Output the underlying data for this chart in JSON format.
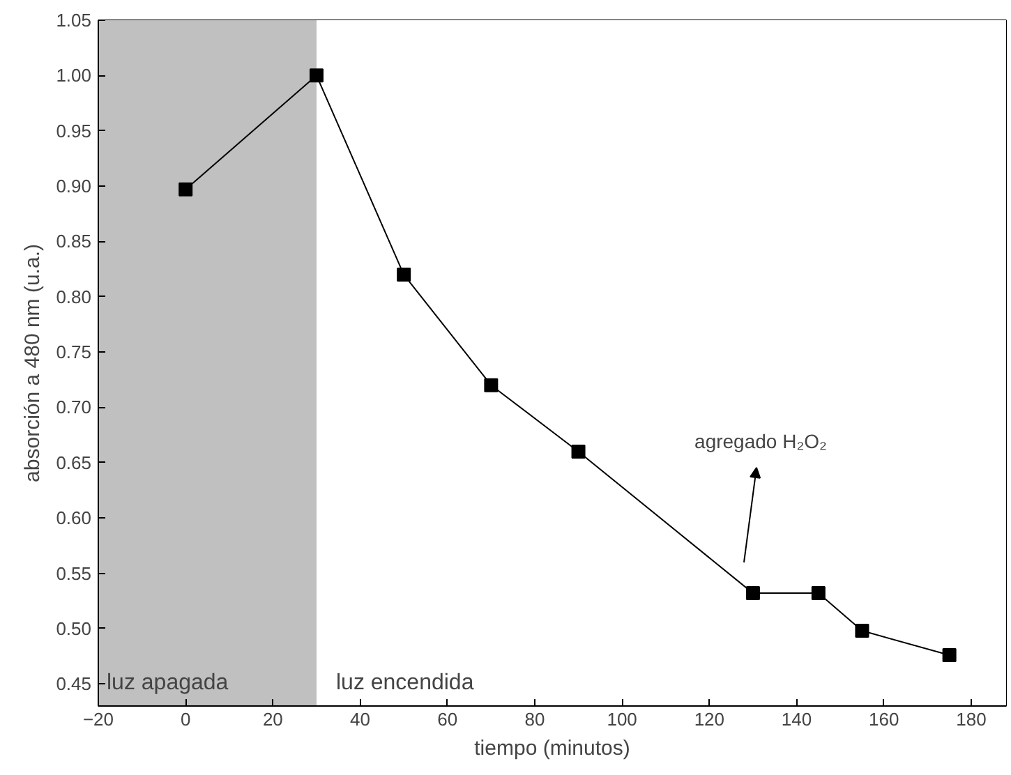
{
  "chart_data": {
    "type": "line",
    "xlabel": "tiempo (minutos)",
    "ylabel": "absorción a 480 nm (u.a.)",
    "x": [
      0,
      30,
      50,
      70,
      90,
      130,
      145,
      155,
      175
    ],
    "series": [
      {
        "color": "#000000",
        "values": [
          0.897,
          1.0,
          0.82,
          0.72,
          0.66,
          0.532,
          0.532,
          0.498,
          0.476
        ]
      }
    ],
    "xlim": [
      -20,
      188
    ],
    "xticks": [
      -20,
      0,
      20,
      40,
      60,
      80,
      100,
      120,
      140,
      160,
      180
    ],
    "ylim": [
      0.43,
      1.05
    ],
    "yticks": [
      {
        "value": 0.45,
        "label": "0.45"
      },
      {
        "value": 0.5,
        "label": "0.50"
      },
      {
        "value": 0.55,
        "label": "0.55"
      },
      {
        "value": 0.6,
        "label": "0.60"
      },
      {
        "value": 0.65,
        "label": "0.65"
      },
      {
        "value": 0.7,
        "label": "0.70"
      },
      {
        "value": 0.75,
        "label": "0.75"
      },
      {
        "value": 0.8,
        "label": "0.80"
      },
      {
        "value": 0.85,
        "label": "0.85"
      },
      {
        "value": 0.9,
        "label": "0.90"
      },
      {
        "value": 0.95,
        "label": "0.95"
      },
      {
        "value": 1.0,
        "label": "1.00"
      },
      {
        "value": 1.05,
        "label": "1.05"
      }
    ],
    "bands": [
      {
        "axis": "x",
        "from": -20,
        "to": 30,
        "label": "luz apagada",
        "color": "#c0c0c0"
      },
      {
        "axis": "x",
        "from": 30,
        "to": 188,
        "label": "luz encendida",
        "color": "#ffffff"
      }
    ],
    "annotations": [
      "agregado H₂O₂"
    ],
    "marker": "square",
    "line_style": "solid"
  }
}
